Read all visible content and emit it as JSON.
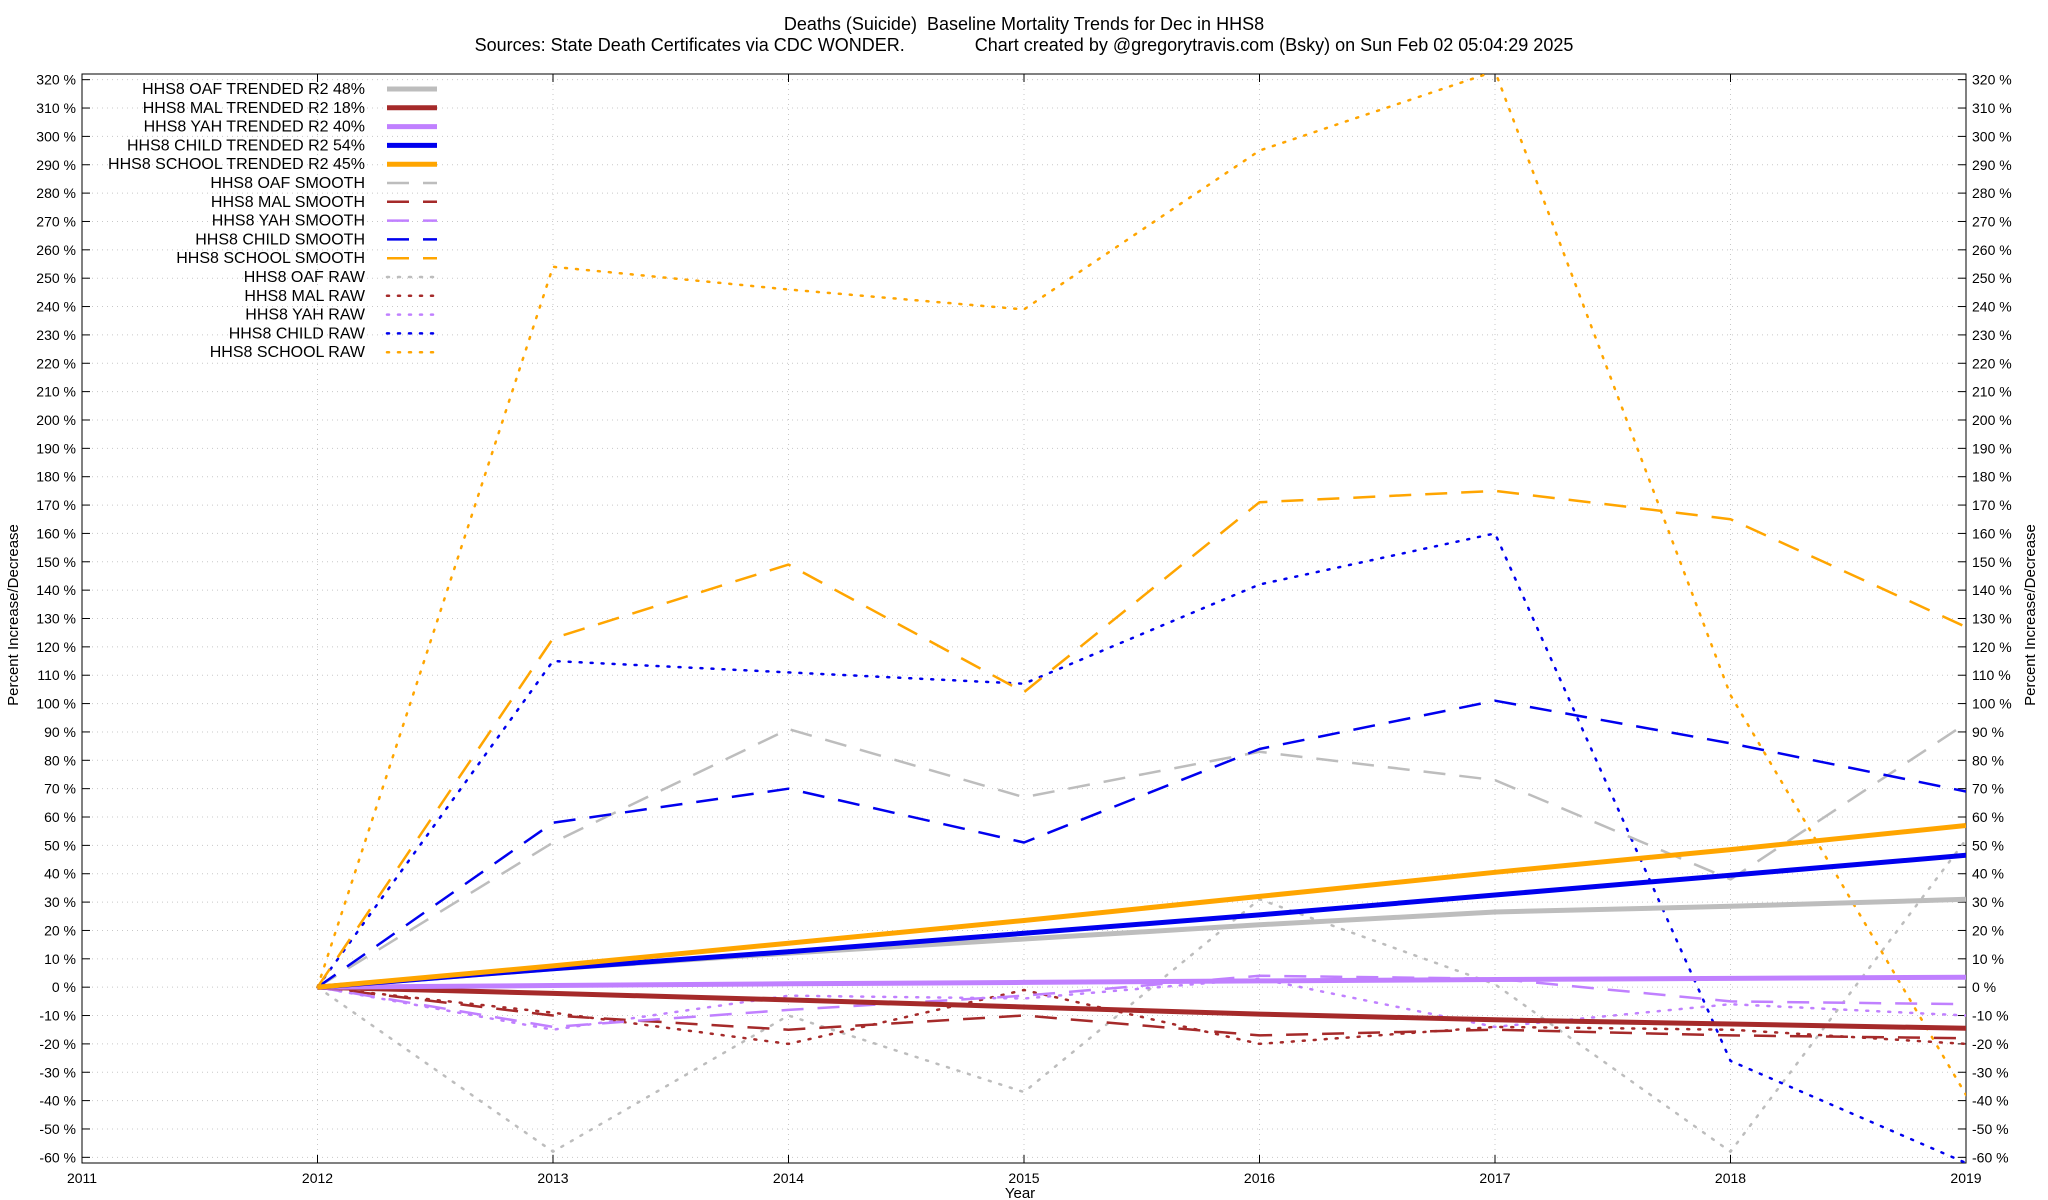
{
  "chart_data": {
    "type": "line",
    "title": "Deaths (Suicide)  Baseline Mortality Trends for Dec in HHS8",
    "subtitle": "Sources: State Death Certificates via CDC WONDER.              Chart created by @gregorytravis.com (Bsky) on Sun Feb 02 05:04:29 2025",
    "xlabel": "Year",
    "ylabel": "Percent Increase/Decrease",
    "y2label": "Percent Increase/Decrease",
    "xlim": [
      2011,
      2019
    ],
    "ylim": [
      -62,
      322
    ],
    "x_ticks": [
      "2011",
      "2012",
      "2013",
      "2014",
      "2015",
      "2016",
      "2017",
      "2018",
      "2019"
    ],
    "y_ticks": [
      "320 %",
      "310 %",
      "300 %",
      "290 %",
      "280 %",
      "270 %",
      "260 %",
      "250 %",
      "240 %",
      "230 %",
      "220 %",
      "210 %",
      "200 %",
      "190 %",
      "180 %",
      "170 %",
      "160 %",
      "150 %",
      "140 %",
      "130 %",
      "120 %",
      "110 %",
      "100 %",
      "90 %",
      "80 %",
      "70 %",
      "60 %",
      "50 %",
      "40 %",
      "30 %",
      "20 %",
      "10 %",
      "0 %",
      "-10 %",
      "-20 %",
      "-30 %",
      "-40 %",
      "-50 %",
      "-60 %"
    ],
    "grid": true,
    "legend_position": "top-left",
    "x": [
      2012,
      2013,
      2014,
      2015,
      2016,
      2017,
      2018,
      2019
    ],
    "series": [
      {
        "name": "HHS8 OAF TRENDED R2  48%",
        "style": "solid",
        "color": "#bdbdbd",
        "values": [
          0,
          6.5,
          12,
          17,
          22,
          26.5,
          28.5,
          31
        ]
      },
      {
        "name": "HHS8 MAL TRENDED R2  18%",
        "style": "solid",
        "color": "#a52a2a",
        "values": [
          0,
          -2.2,
          -4.5,
          -7,
          -9.5,
          -11.5,
          -13,
          -14.5
        ]
      },
      {
        "name": "HHS8 YAH TRENDED R2  40%",
        "style": "solid",
        "color": "#c080ff",
        "values": [
          0,
          0.6,
          1.2,
          1.7,
          2.2,
          2.7,
          3.1,
          3.5
        ]
      },
      {
        "name": "HHS8 CHILD TRENDED R2  54%",
        "style": "solid",
        "color": "#0000ee",
        "values": [
          0,
          6.5,
          12.5,
          19,
          25.5,
          32.5,
          39.5,
          46.5
        ]
      },
      {
        "name": "HHS8 SCHOOL TRENDED R2  45%",
        "style": "solid",
        "color": "#ffa500",
        "values": [
          0,
          7.5,
          15.5,
          23.5,
          32,
          40.5,
          48.5,
          57
        ]
      },
      {
        "name": "HHS8 OAF SMOOTH",
        "style": "dashed",
        "color": "#bdbdbd",
        "values": [
          0,
          51,
          91,
          67,
          83,
          73,
          38,
          93
        ]
      },
      {
        "name": "HHS8 MAL SMOOTH",
        "style": "dashed",
        "color": "#a52a2a",
        "values": [
          0,
          -10,
          -15,
          -10,
          -17,
          -15,
          -17,
          -18
        ]
      },
      {
        "name": "HHS8 YAH SMOOTH",
        "style": "dashed",
        "color": "#c080ff",
        "values": [
          0,
          -14,
          -8,
          -3,
          4,
          3,
          -5,
          -6
        ]
      },
      {
        "name": "HHS8 CHILD SMOOTH",
        "style": "dashed",
        "color": "#0000ee",
        "values": [
          0,
          58,
          70,
          51,
          84,
          101,
          86,
          69
        ]
      },
      {
        "name": "HHS8 SCHOOL SMOOTH",
        "style": "dashed",
        "color": "#ffa500",
        "values": [
          0,
          123,
          149,
          104,
          171,
          175,
          165,
          127
        ]
      },
      {
        "name": "HHS8 OAF RAW",
        "style": "dotted",
        "color": "#bdbdbd",
        "values": [
          0,
          -58,
          -10,
          -37,
          31,
          1,
          -58,
          52
        ]
      },
      {
        "name": "HHS8 MAL RAW",
        "style": "dotted",
        "color": "#a52a2a",
        "values": [
          0,
          -9,
          -20,
          -1,
          -20,
          -14,
          -15,
          -20
        ]
      },
      {
        "name": "HHS8 YAH RAW",
        "style": "dotted",
        "color": "#c080ff",
        "values": [
          0,
          -15,
          -3,
          -4,
          3,
          -14,
          -6,
          -10
        ]
      },
      {
        "name": "HHS8 CHILD RAW",
        "style": "dotted",
        "color": "#0000ee",
        "values": [
          0,
          115,
          111,
          107,
          142,
          160,
          -26,
          -62
        ]
      },
      {
        "name": "HHS8 SCHOOL RAW",
        "style": "dotted",
        "color": "#ffa500",
        "values": [
          0,
          254,
          246,
          239,
          295,
          323,
          103,
          -38
        ]
      }
    ]
  }
}
